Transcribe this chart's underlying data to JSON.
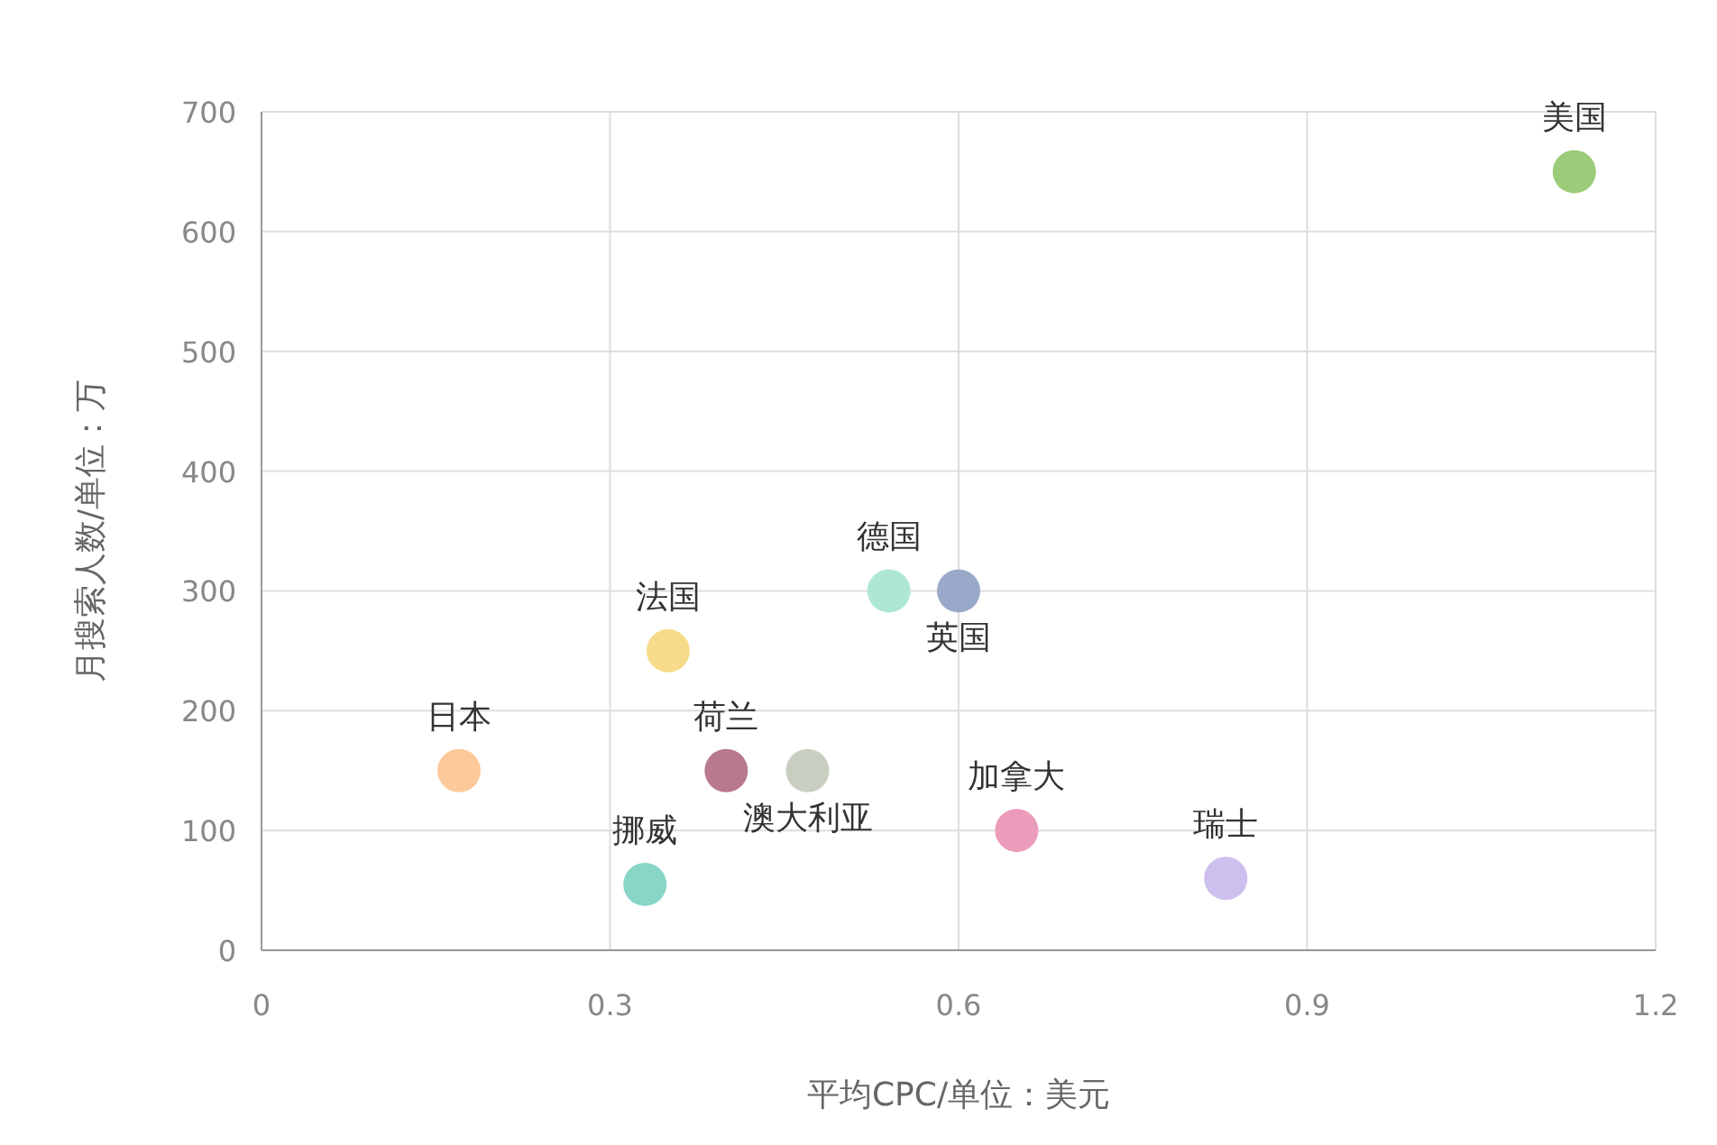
{
  "chart_data": {
    "type": "scatter",
    "xlabel": "平均CPC/单位：美元",
    "ylabel": "月搜索人数/单位：万",
    "xlim": [
      0,
      1.2
    ],
    "xticks": [
      0,
      0.3,
      0.6,
      0.9,
      1.2
    ],
    "ylim": [
      0,
      700
    ],
    "yticks": [
      0,
      100,
      200,
      300,
      400,
      500,
      600,
      700
    ],
    "grid": true,
    "marker": "circle",
    "series": [
      {
        "name": "美国",
        "color": "#9ccc7a",
        "x": [
          1.13
        ],
        "values": [
          650
        ]
      },
      {
        "name": "德国",
        "color": "#aee8d3",
        "x": [
          0.54
        ],
        "values": [
          300
        ]
      },
      {
        "name": "英国",
        "color": "#9aa9c9",
        "x": [
          0.6
        ],
        "values": [
          300
        ]
      },
      {
        "name": "法国",
        "color": "#f6dc8a",
        "x": [
          0.35
        ],
        "values": [
          250
        ]
      },
      {
        "name": "日本",
        "color": "#fdc99a",
        "x": [
          0.17
        ],
        "values": [
          150
        ]
      },
      {
        "name": "荷兰",
        "color": "#b8798e",
        "x": [
          0.4
        ],
        "values": [
          150
        ]
      },
      {
        "name": "澳大利亚",
        "color": "#c8cfc0",
        "x": [
          0.47
        ],
        "values": [
          150
        ]
      },
      {
        "name": "挪威",
        "color": "#88d6c8",
        "x": [
          0.33
        ],
        "values": [
          55
        ]
      },
      {
        "name": "加拿大",
        "color": "#ec9bbb",
        "x": [
          0.65
        ],
        "values": [
          100
        ]
      },
      {
        "name": "瑞士",
        "color": "#cdbfee",
        "x": [
          0.83
        ],
        "values": [
          60
        ]
      }
    ]
  }
}
